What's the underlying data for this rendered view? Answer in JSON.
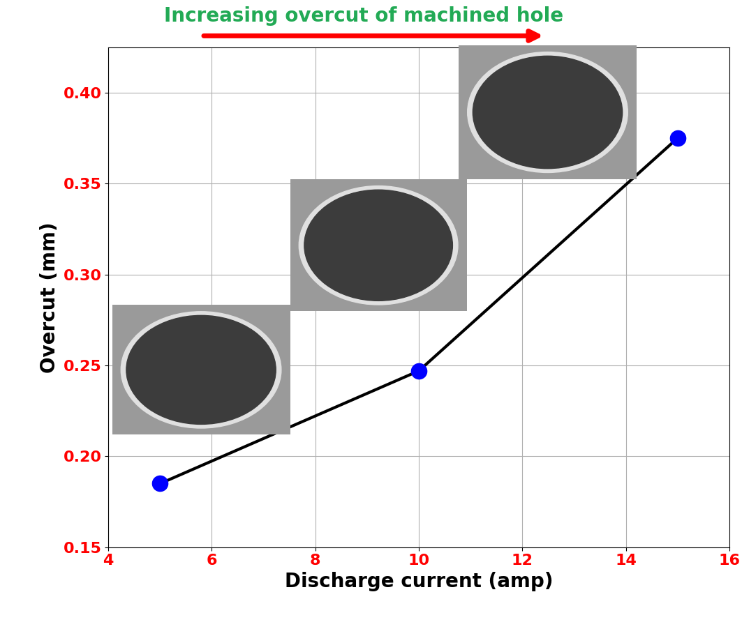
{
  "chart_data": {
    "type": "line",
    "title": "Increasing overcut of machined hole",
    "x_label": "Discharge current (amp)",
    "y_label": "Overcut (mm)",
    "x": [
      5,
      10,
      15
    ],
    "series": [
      {
        "name": "Overcut",
        "color": "#0000ff",
        "values": [
          0.185,
          0.247,
          0.375
        ],
        "marker": "circle",
        "line_style": "solid"
      }
    ],
    "xlim": [
      4,
      16
    ],
    "xticks": [
      4,
      6,
      8,
      10,
      12,
      14,
      16
    ],
    "ylim": [
      0.15,
      0.425
    ],
    "yticks": [
      0.15,
      {
        "value": 0.2,
        "label": "0.20"
      },
      0.25,
      {
        "value": 0.3,
        "label": "0.30"
      },
      0.35,
      {
        "value": 0.4,
        "label": "0.40"
      }
    ],
    "grid": true
  }
}
